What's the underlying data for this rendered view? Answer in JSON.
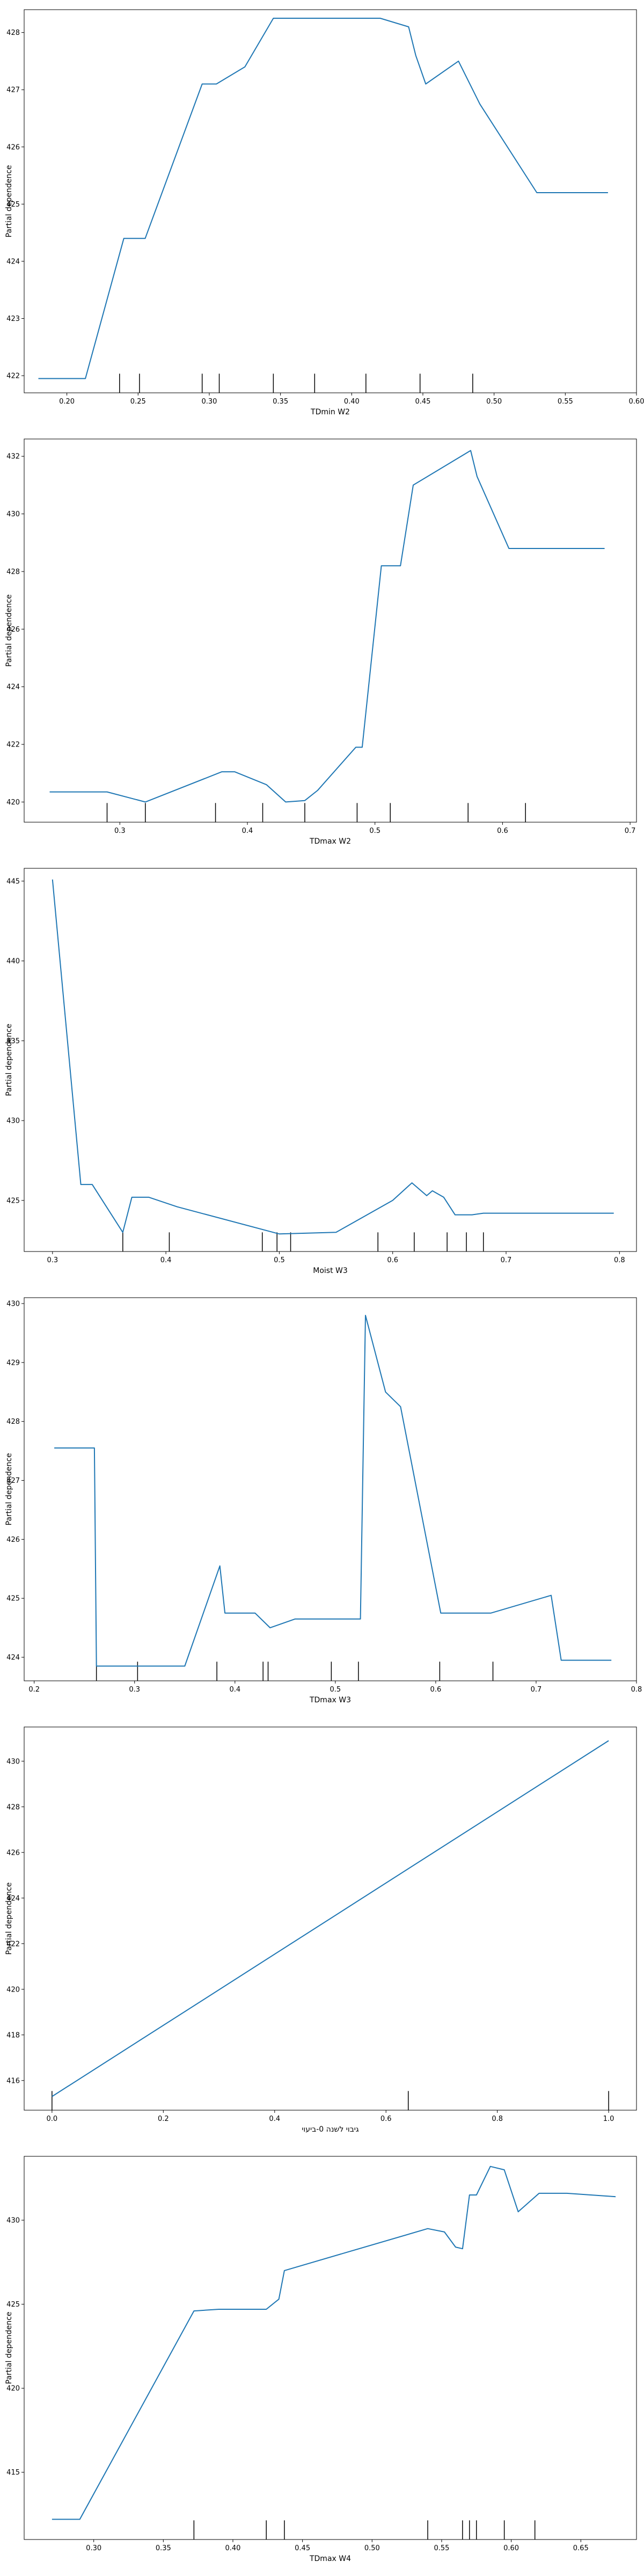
{
  "style": {
    "line_color": "#1f77b4",
    "axis_color": "#000000",
    "rug_color": "#000000",
    "background": "#ffffff"
  },
  "chart_data": [
    {
      "type": "line",
      "xlabel": "TDmin W2",
      "ylabel": "Partial dependence",
      "xlim": [
        0.17,
        0.6
      ],
      "ylim": [
        421.7,
        428.4
      ],
      "xticks": [
        "0.20",
        "0.25",
        "0.30",
        "0.35",
        "0.40",
        "0.45",
        "0.50",
        "0.55",
        "0.60"
      ],
      "yticks": [
        "422",
        "423",
        "424",
        "425",
        "426",
        "427",
        "428"
      ],
      "x": [
        0.18,
        0.213,
        0.24,
        0.255,
        0.295,
        0.305,
        0.325,
        0.345,
        0.37,
        0.4,
        0.42,
        0.44,
        0.445,
        0.452,
        0.475,
        0.49,
        0.53,
        0.58
      ],
      "y": [
        421.95,
        421.95,
        424.4,
        424.4,
        427.1,
        427.1,
        427.4,
        428.25,
        428.25,
        428.25,
        428.25,
        428.1,
        427.6,
        427.1,
        427.5,
        426.75,
        425.2,
        425.2
      ],
      "rug": [
        0.237,
        0.251,
        0.295,
        0.307,
        0.345,
        0.374,
        0.41,
        0.448,
        0.485
      ]
    },
    {
      "type": "line",
      "xlabel": "TDmax W2",
      "ylabel": "Partial dependence",
      "xlim": [
        0.225,
        0.705
      ],
      "ylim": [
        419.3,
        432.6
      ],
      "xticks": [
        "0.3",
        "0.4",
        "0.5",
        "0.6",
        "0.7"
      ],
      "yticks": [
        "420",
        "422",
        "424",
        "426",
        "428",
        "430",
        "432"
      ],
      "x": [
        0.245,
        0.29,
        0.32,
        0.38,
        0.39,
        0.415,
        0.43,
        0.445,
        0.455,
        0.485,
        0.49,
        0.505,
        0.52,
        0.53,
        0.575,
        0.58,
        0.605,
        0.68
      ],
      "y": [
        420.35,
        420.35,
        420.0,
        421.05,
        421.05,
        420.6,
        420.0,
        420.05,
        420.4,
        421.9,
        421.9,
        428.2,
        428.2,
        431.0,
        432.2,
        431.3,
        428.8,
        428.8
      ],
      "rug": [
        0.29,
        0.32,
        0.375,
        0.412,
        0.445,
        0.486,
        0.512,
        0.573,
        0.618
      ]
    },
    {
      "type": "line",
      "xlabel": "Moist W3",
      "ylabel": "Partial dependence",
      "xlim": [
        0.275,
        0.815
      ],
      "ylim": [
        421.8,
        445.8
      ],
      "xticks": [
        "0.3",
        "0.4",
        "0.5",
        "0.6",
        "0.7",
        "0.8"
      ],
      "yticks": [
        "425",
        "430",
        "435",
        "440",
        "445"
      ],
      "x": [
        0.3,
        0.325,
        0.335,
        0.362,
        0.37,
        0.385,
        0.41,
        0.5,
        0.525,
        0.55,
        0.6,
        0.617,
        0.63,
        0.635,
        0.645,
        0.655,
        0.67,
        0.68,
        0.795
      ],
      "y": [
        445.1,
        426.0,
        426.0,
        423.0,
        425.2,
        425.2,
        424.6,
        422.9,
        422.95,
        423.0,
        425.0,
        426.1,
        425.3,
        425.6,
        425.2,
        424.1,
        424.1,
        424.2,
        424.2
      ],
      "rug": [
        0.362,
        0.403,
        0.485,
        0.498,
        0.51,
        0.587,
        0.619,
        0.648,
        0.665,
        0.68
      ]
    },
    {
      "type": "line",
      "xlabel": "TDmax W3",
      "ylabel": "Partial dependence",
      "xlim": [
        0.19,
        0.8
      ],
      "ylim": [
        423.6,
        430.1
      ],
      "xticks": [
        "0.2",
        "0.3",
        "0.4",
        "0.5",
        "0.6",
        "0.7",
        "0.8"
      ],
      "yticks": [
        "424",
        "425",
        "426",
        "427",
        "428",
        "429",
        "430"
      ],
      "x": [
        0.22,
        0.26,
        0.262,
        0.35,
        0.385,
        0.39,
        0.42,
        0.435,
        0.46,
        0.525,
        0.53,
        0.55,
        0.565,
        0.605,
        0.655,
        0.715,
        0.725,
        0.775
      ],
      "y": [
        427.55,
        427.55,
        423.85,
        423.85,
        425.55,
        424.75,
        424.75,
        424.5,
        424.65,
        424.65,
        429.8,
        428.5,
        428.25,
        424.75,
        424.75,
        425.05,
        423.95,
        423.95
      ],
      "rug": [
        0.262,
        0.303,
        0.382,
        0.428,
        0.433,
        0.496,
        0.523,
        0.604,
        0.657
      ]
    },
    {
      "type": "line",
      "xlabel": "גיבוי לשנה 0-ביעוי",
      "ylabel": "Partial dependence",
      "xlim": [
        -0.05,
        1.05
      ],
      "ylim": [
        414.7,
        431.5
      ],
      "xticks": [
        "0.0",
        "0.2",
        "0.4",
        "0.6",
        "0.8",
        "1.0"
      ],
      "yticks": [
        "416",
        "418",
        "420",
        "422",
        "424",
        "426",
        "428",
        "430"
      ],
      "x": [
        0.0,
        1.0
      ],
      "y": [
        415.3,
        430.9
      ],
      "rug": [
        0.0,
        0.64,
        1.0
      ]
    },
    {
      "type": "line",
      "xlabel": "TDmax W4",
      "ylabel": "Partial dependence",
      "xlim": [
        0.25,
        0.69
      ],
      "ylim": [
        411.0,
        433.8
      ],
      "xticks": [
        "0.30",
        "0.35",
        "0.40",
        "0.45",
        "0.50",
        "0.55",
        "0.60",
        "0.65"
      ],
      "yticks": [
        "415",
        "420",
        "425",
        "430"
      ],
      "x": [
        0.27,
        0.29,
        0.372,
        0.39,
        0.424,
        0.433,
        0.437,
        0.54,
        0.552,
        0.56,
        0.565,
        0.57,
        0.575,
        0.585,
        0.595,
        0.605,
        0.62,
        0.64,
        0.675
      ],
      "y": [
        412.2,
        412.2,
        424.6,
        424.7,
        424.7,
        425.3,
        427.0,
        429.5,
        429.3,
        428.4,
        428.3,
        431.5,
        431.5,
        433.2,
        433.0,
        430.5,
        431.6,
        431.6,
        431.4
      ],
      "rug": [
        0.372,
        0.424,
        0.437,
        0.54,
        0.565,
        0.57,
        0.575,
        0.595,
        0.617
      ]
    }
  ]
}
